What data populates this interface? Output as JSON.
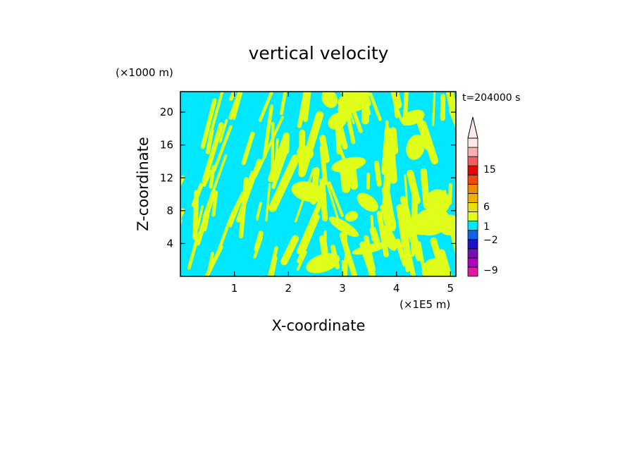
{
  "chart_data": {
    "type": "heatmap",
    "title": "vertical velocity",
    "xlabel": "X-coordinate",
    "ylabel": "Z-coordinate",
    "x_unit": "(×1E5 m)",
    "y_unit": "(×1000 m)",
    "time_label": "t=204000 s",
    "xlim": [
      0,
      5.1
    ],
    "ylim": [
      0,
      22.5
    ],
    "x_ticks": [
      1,
      2,
      3,
      4,
      5
    ],
    "y_ticks": [
      4,
      8,
      12,
      16,
      20
    ],
    "grid": false,
    "field_colors": {
      "positive": "#dfff1a",
      "negative": "#00e8ff"
    },
    "colorbar": {
      "levels": [
        -9,
        -2,
        1,
        6,
        15
      ],
      "tick_labels": [
        "15",
        "6",
        "1",
        "−2",
        "−9"
      ],
      "extend": "max",
      "colors": [
        "#e01aa0",
        "#b000c0",
        "#7010b0",
        "#2010c8",
        "#1060e8",
        "#00e8ff",
        "#dfff1a",
        "#e8e010",
        "#f0b000",
        "#f08a00",
        "#f04a10",
        "#e00a00",
        "#f06060",
        "#f8b0b0",
        "#ffe8e8"
      ]
    }
  }
}
